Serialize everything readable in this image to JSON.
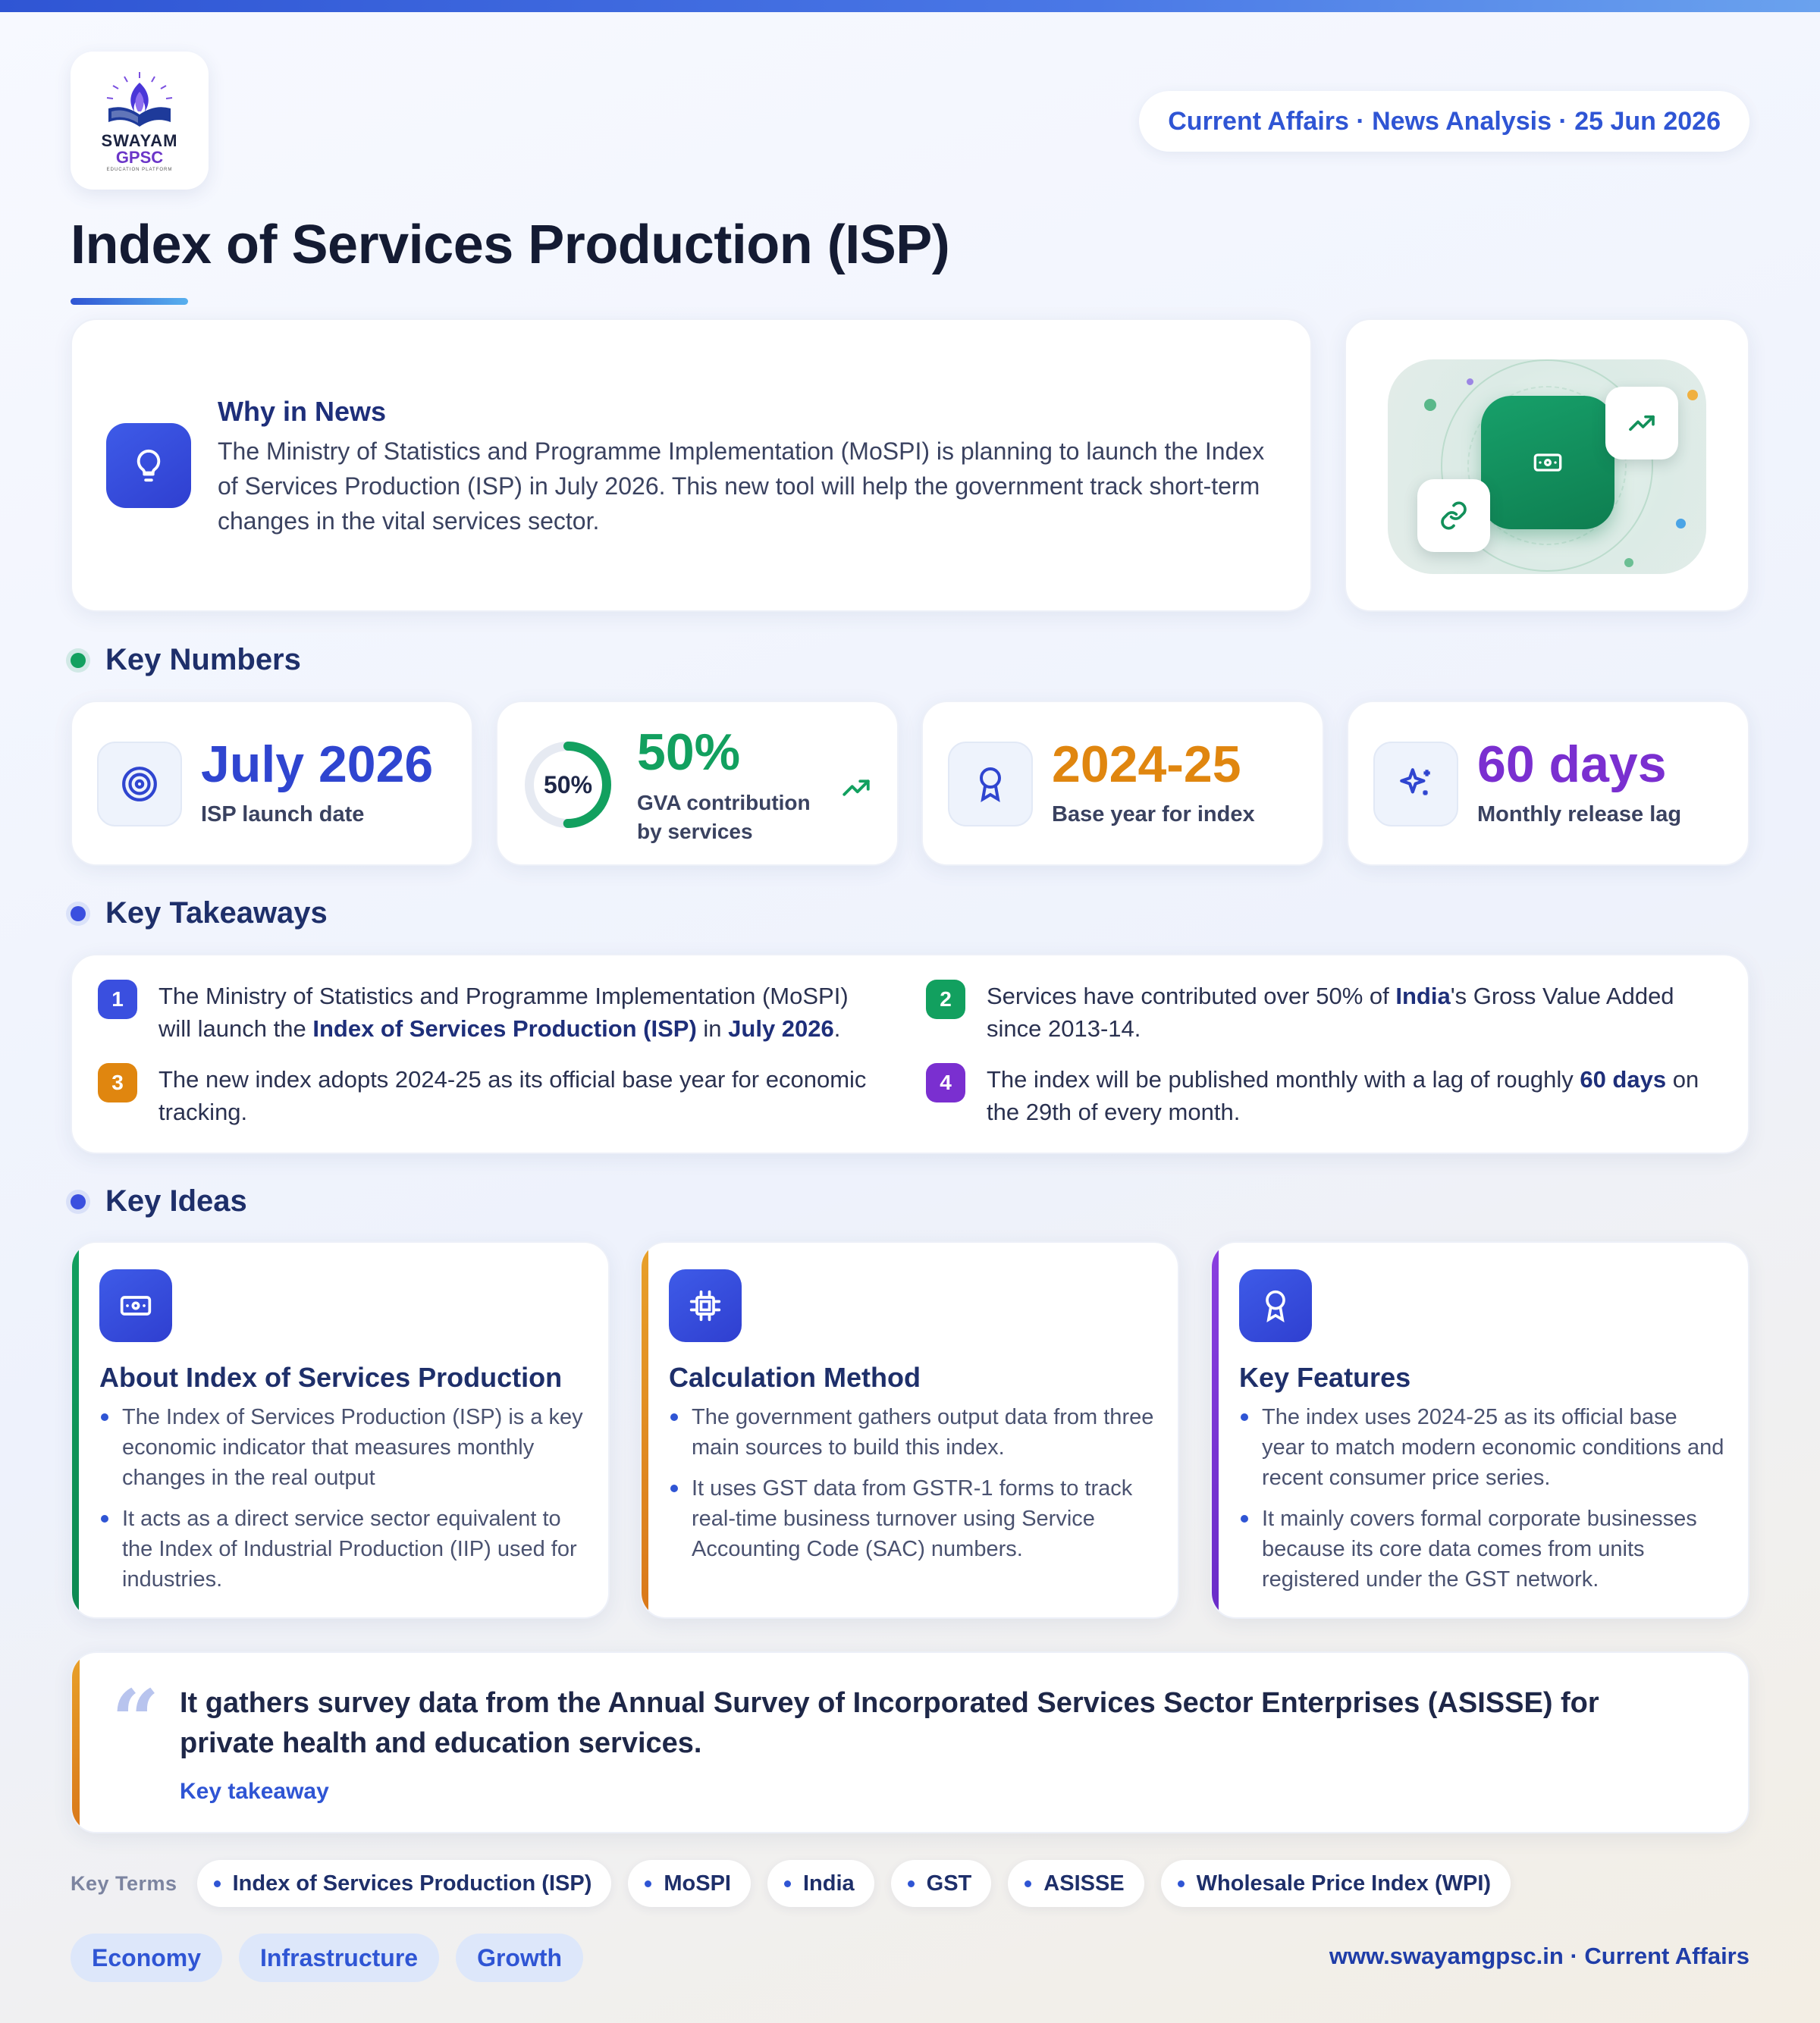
{
  "brand": {
    "logo_word": "SWAYAM",
    "logo_sub": "GPSC",
    "logo_tagline": "EDUCATION PLATFORM"
  },
  "header": {
    "date_pill": "Current Affairs · News Analysis · 25 Jun 2026"
  },
  "page_title": "Index of Services Production (ISP)",
  "why_in_news": {
    "heading": "Why in News",
    "text": "The Ministry of Statistics and Programme Implementation (MoSPI) is planning to launch the Index of Services Production (ISP) in July 2026. This new tool will help the government track short-term changes in the vital services sector."
  },
  "sections": {
    "key_numbers": "Key Numbers",
    "key_takeaways": "Key Takeaways",
    "key_ideas": "Key Ideas"
  },
  "key_numbers": [
    {
      "value": "July 2026",
      "label": "ISP launch date",
      "icon": "target-icon",
      "color": "#2f45d0"
    },
    {
      "value": "50%",
      "ring_label": "50%",
      "label_line1": "GVA contribution",
      "label_line2": "by services",
      "progress": 0.5,
      "icon": "trend-up-icon",
      "color": "#12a05f"
    },
    {
      "value": "2024-25",
      "label": "Base year for index",
      "icon": "award-icon",
      "color": "#e0860f"
    },
    {
      "value": "60 days",
      "label": "Monthly release lag",
      "icon": "sparkles-icon",
      "color": "#7a2fd0"
    }
  ],
  "takeaways": [
    {
      "num": "1",
      "color": "#3a4fdf",
      "before": "The Ministry of Statistics and Programme Implementation (MoSPI) will launch the ",
      "b1": "Index of Services Production (ISP)",
      "mid": " in ",
      "b2": "July 2026",
      "after": "."
    },
    {
      "num": "2",
      "color": "#12a05f",
      "before": "Services have contributed over 50% of ",
      "b1": "India",
      "after": "'s Gross Value Added since 2013-14."
    },
    {
      "num": "3",
      "color": "#e0860f",
      "text": "The new index adopts 2024-25 as its official base year for economic tracking."
    },
    {
      "num": "4",
      "color": "#7a2fd0",
      "before": "The index will be published monthly with a lag of roughly ",
      "b1": "60 days",
      "after": " on the 29th of every month."
    }
  ],
  "ideas": [
    {
      "title": "About Index of Services Production",
      "accent": "#12a05f",
      "icon": "banknote-icon",
      "points": [
        "The Index of Services Production (ISP) is a key economic indicator that measures monthly changes in the real output",
        "It acts as a direct service sector equivalent to the Index of Industrial Production (IIP) used for industries."
      ]
    },
    {
      "title": "Calculation Method",
      "accent": "#e0860f",
      "icon": "cpu-icon",
      "points": [
        "The government gathers output data from three main sources to build this index.",
        "It uses GST data from GSTR-1 forms to track real-time business turnover using Service Accounting Code (SAC) numbers."
      ]
    },
    {
      "title": "Key Features",
      "accent": "#7a2fd0",
      "icon": "award-icon",
      "points": [
        "The index uses 2024-25 as its official base year to match modern economic conditions and recent consumer price series.",
        "It mainly covers formal corporate businesses because its core data comes from units registered under the GST network."
      ]
    }
  ],
  "quote": {
    "mark": "“",
    "text": "It gathers survey data from the Annual Survey of Incorporated Services Sector Enterprises (ASISSE) for private health and education services.",
    "label": "Key takeaway"
  },
  "key_terms": {
    "label": "Key Terms",
    "items": [
      "Index of Services Production (ISP)",
      "MoSPI",
      "India",
      "GST",
      "ASISSE",
      "Wholesale Price Index (WPI)"
    ]
  },
  "tags": [
    "Economy",
    "Infrastructure",
    "Growth"
  ],
  "footer": {
    "url": "www.swayamgpsc.in · Current Affairs"
  }
}
